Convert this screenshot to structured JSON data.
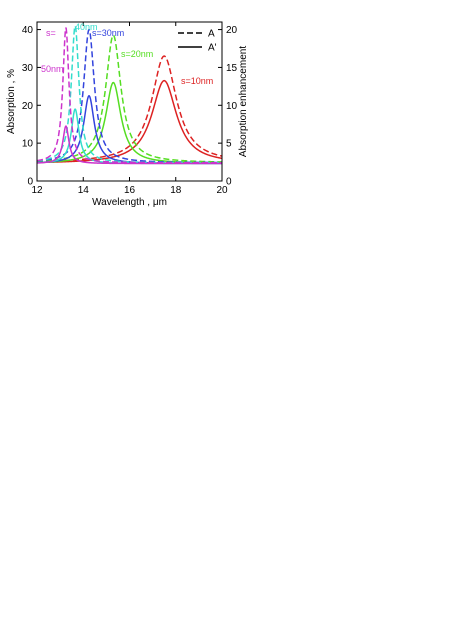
{
  "chart_data": {
    "type": "line",
    "xlabel": "Wavelength , μm",
    "ylabel": "Absorption , %",
    "y2label": "Absorption enhancement",
    "xlim": [
      12,
      20
    ],
    "ylim": [
      0,
      42
    ],
    "y2lim": [
      0,
      21
    ],
    "xticks": [
      12,
      14,
      16,
      18,
      20
    ],
    "yticks": [
      0,
      10,
      20,
      30,
      40
    ],
    "y2ticks": [
      0,
      5,
      10,
      15,
      20
    ],
    "grid": false,
    "legend": {
      "position": "top-right",
      "entries": [
        {
          "label": "A",
          "style": "dashed"
        },
        {
          "label": "A'",
          "style": "solid"
        }
      ]
    },
    "annotations": [
      {
        "text": "s=",
        "color": "#cc33cc"
      },
      {
        "text": "50nm",
        "color": "#cc33cc"
      },
      {
        "text": "40nm",
        "color": "#33ddcc"
      },
      {
        "text": "s=30nm",
        "color": "#3344dd"
      },
      {
        "text": "s=20nm",
        "color": "#55dd22"
      },
      {
        "text": "s=10nm",
        "color": "#dd2222"
      }
    ],
    "series": [
      {
        "group": "s=10nm",
        "style": "dashed",
        "color": "#dd2222",
        "baseline": 4.8,
        "peak_x": 17.5,
        "peak_y": 33.0,
        "hwhm": 0.65
      },
      {
        "group": "s=10nm",
        "style": "solid",
        "color": "#dd2222",
        "baseline": 4.6,
        "peak_x": 17.5,
        "peak_y": 26.5,
        "hwhm": 0.65
      },
      {
        "group": "s=20nm",
        "style": "dashed",
        "color": "#55dd22",
        "baseline": 4.8,
        "peak_x": 15.3,
        "peak_y": 38.5,
        "hwhm": 0.4
      },
      {
        "group": "s=20nm",
        "style": "solid",
        "color": "#55dd22",
        "baseline": 4.6,
        "peak_x": 15.3,
        "peak_y": 26.0,
        "hwhm": 0.4
      },
      {
        "group": "s=30nm",
        "style": "dashed",
        "color": "#3344dd",
        "baseline": 4.8,
        "peak_x": 14.25,
        "peak_y": 40.0,
        "hwhm": 0.28
      },
      {
        "group": "s=30nm",
        "style": "solid",
        "color": "#3344dd",
        "baseline": 4.6,
        "peak_x": 14.25,
        "peak_y": 22.5,
        "hwhm": 0.28
      },
      {
        "group": "40nm",
        "style": "dashed",
        "color": "#33ddcc",
        "baseline": 4.8,
        "peak_x": 13.65,
        "peak_y": 41.0,
        "hwhm": 0.2
      },
      {
        "group": "40nm",
        "style": "solid",
        "color": "#33ddcc",
        "baseline": 4.6,
        "peak_x": 13.65,
        "peak_y": 19.0,
        "hwhm": 0.2
      },
      {
        "group": "s=50nm",
        "style": "dashed",
        "color": "#cc33cc",
        "baseline": 4.8,
        "peak_x": 13.25,
        "peak_y": 40.5,
        "hwhm": 0.16
      },
      {
        "group": "s=50nm",
        "style": "solid",
        "color": "#cc33cc",
        "baseline": 4.6,
        "peak_x": 13.25,
        "peak_y": 14.5,
        "hwhm": 0.16
      }
    ]
  }
}
